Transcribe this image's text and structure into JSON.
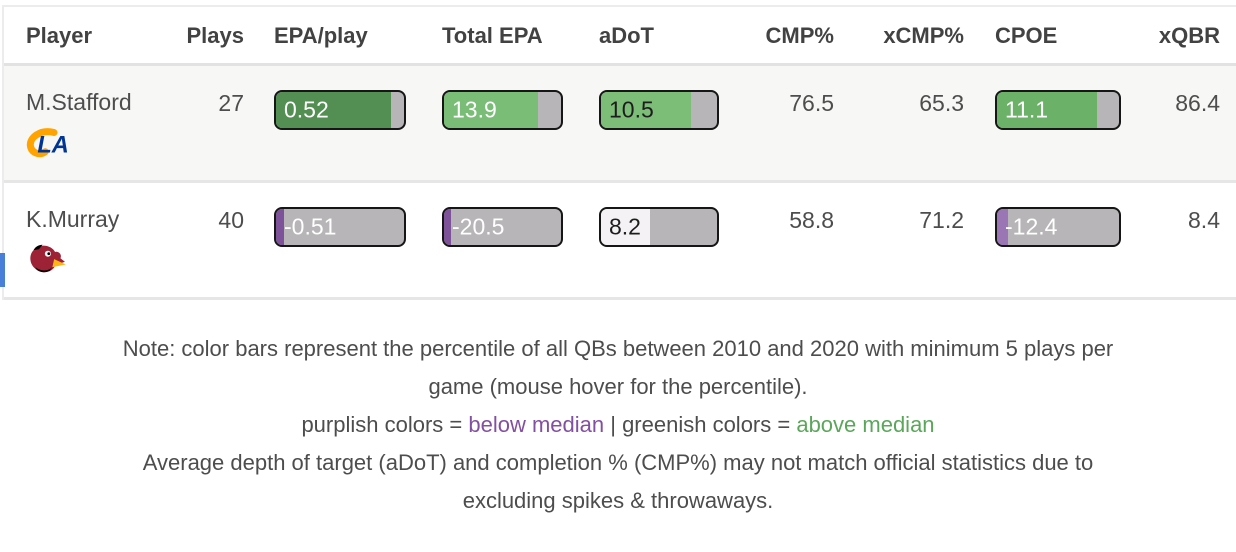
{
  "table": {
    "columns": [
      {
        "label": "Player"
      },
      {
        "label": "Plays"
      },
      {
        "label": "EPA/play"
      },
      {
        "label": "Total EPA"
      },
      {
        "label": "aDoT"
      },
      {
        "label": "CMP%"
      },
      {
        "label": "xCMP%"
      },
      {
        "label": "CPOE"
      },
      {
        "label": "xQBR"
      }
    ],
    "rows": [
      {
        "player": "M.Stafford",
        "team": "LA Rams",
        "plays": "27",
        "epa_play": {
          "value": "0.52",
          "fill_pct": 90,
          "fill_color": "#538e52",
          "text_color": "#ffffff"
        },
        "total_epa": {
          "value": "13.9",
          "fill_pct": 80,
          "fill_color": "#79bd76",
          "text_color": "#ffffff"
        },
        "adot": {
          "value": "10.5",
          "fill_pct": 78,
          "fill_color": "#7cbd78",
          "text_color": "#1d1d1d"
        },
        "cmp": "76.5",
        "xcmp": "65.3",
        "cpoe": {
          "value": "11.1",
          "fill_pct": 82,
          "fill_color": "#6cb168",
          "text_color": "#ffffff"
        },
        "xqbr": "86.4"
      },
      {
        "player": "K.Murray",
        "team": "Arizona Cardinals",
        "plays": "40",
        "epa_play": {
          "value": "-0.51",
          "fill_pct": 6,
          "fill_color": "#7d5299",
          "text_color": "#ffffff"
        },
        "total_epa": {
          "value": "-20.5",
          "fill_pct": 6,
          "fill_color": "#7d5299",
          "text_color": "#ffffff"
        },
        "adot": {
          "value": "8.2",
          "fill_pct": 42,
          "fill_color": "#f4f2f4",
          "text_color": "#1d1d1d"
        },
        "cmp": "58.8",
        "xcmp": "71.2",
        "cpoe": {
          "value": "-12.4",
          "fill_pct": 9,
          "fill_color": "#9a76b5",
          "text_color": "#ffffff"
        },
        "xqbr": "8.4"
      }
    ]
  },
  "notes": {
    "line1": "Note: color bars represent the percentile of all QBs between 2010 and 2020 with minimum 5 plays per",
    "line2": "game (mouse hover for the percentile).",
    "legend_purple_prefix": "purplish colors = ",
    "legend_purple_text": "below median",
    "legend_separator": " | ",
    "legend_green_prefix": "greenish colors = ",
    "legend_green_text": "above median",
    "line4": "Average depth of target (aDoT) and completion % (CMP%) may not match official statistics due to",
    "line5": "excluding spikes & throwaways."
  },
  "colors": {
    "bar_gray": "#b7b5b7",
    "bar_border": "#161616",
    "dark_green": "#538e52",
    "light_green": "#79bd76",
    "cpoe_green": "#6cb168",
    "purple": "#7d5299",
    "light_purple": "#9a76b5",
    "note_purple": "#8250a0",
    "note_green": "#5aa65a",
    "row_stripe": "#f7f7f6"
  }
}
